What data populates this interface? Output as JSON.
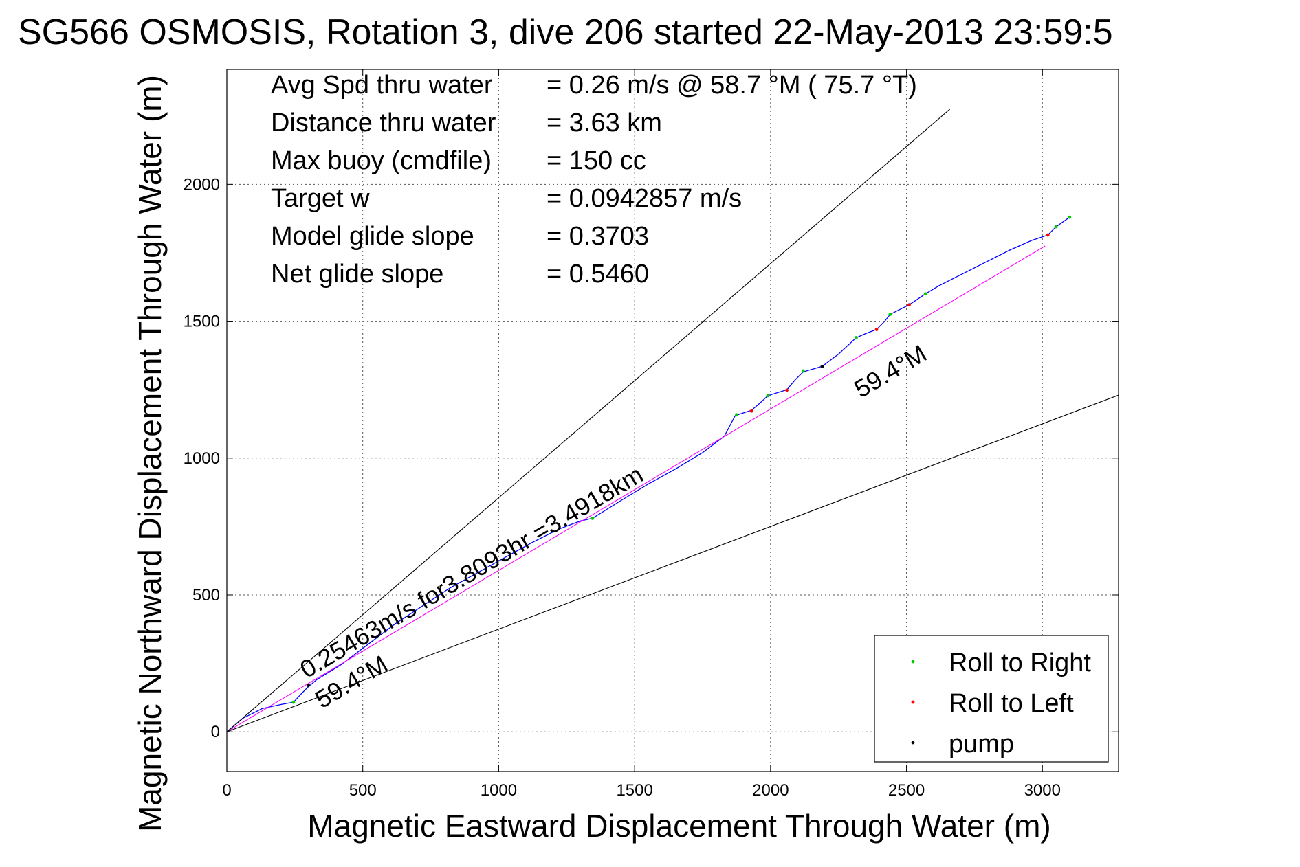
{
  "title": "SG566 OSMOSIS, Rotation 3, dive 206 started 22-May-2013 23:59:5",
  "chart_data": {
    "type": "line",
    "xlabel": "Magnetic Eastward Displacement Through Water (m)",
    "ylabel": "Magnetic Northward Displacement Through Water (m)",
    "xlim": [
      0,
      3280
    ],
    "ylim": [
      -145,
      2420
    ],
    "xticks": [
      0,
      500,
      1000,
      1500,
      2000,
      2500,
      3000
    ],
    "yticks": [
      0,
      500,
      1000,
      1500,
      2000
    ],
    "grid": true,
    "stats": [
      {
        "label": "Avg Spd thru water",
        "value": "=  0.26 m/s @  58.7 °M ( 75.7 °T)"
      },
      {
        "label": "Distance thru water",
        "value": "=  3.63 km"
      },
      {
        "label": "Max buoy (cmdfile)",
        "value": "= 150 cc"
      },
      {
        "label": "Target w",
        "value": "= 0.0942857 m/s"
      },
      {
        "label": "Model glide slope",
        "value": "= 0.3703"
      },
      {
        "label": "Net glide slope",
        "value": "= 0.5460"
      }
    ],
    "annotations": {
      "drift": "0.25463m/s for3.8093hr =3.4918km",
      "heading_upper": "59.4°M",
      "heading_lower": "59.4°M"
    },
    "series": [
      {
        "name": "track",
        "color": "#0000ff",
        "x": [
          0,
          60,
          130,
          200,
          245,
          275,
          300,
          330,
          420,
          520,
          620,
          720,
          820,
          920,
          1020,
          1120,
          1220,
          1300,
          1345,
          1450,
          1550,
          1650,
          1750,
          1830,
          1870,
          1900,
          1930,
          1960,
          1990,
          2060,
          2090,
          2120,
          2190,
          2250,
          2315,
          2350,
          2390,
          2420,
          2440,
          2470,
          2510,
          2540,
          2570,
          2620,
          2700,
          2800,
          2880,
          2960,
          3020,
          3050,
          3100
        ],
        "y": [
          0,
          50,
          85,
          100,
          108,
          140,
          165,
          190,
          245,
          320,
          395,
          460,
          525,
          580,
          635,
          690,
          740,
          770,
          780,
          845,
          905,
          960,
          1020,
          1080,
          1155,
          1165,
          1175,
          1200,
          1228,
          1250,
          1285,
          1315,
          1335,
          1380,
          1440,
          1455,
          1470,
          1500,
          1525,
          1540,
          1560,
          1580,
          1600,
          1630,
          1670,
          1720,
          1760,
          1795,
          1815,
          1845,
          1880
        ]
      },
      {
        "name": "glide path",
        "color": "#ff00ff",
        "x": [
          0,
          3010
        ],
        "y": [
          0,
          1775
        ]
      },
      {
        "name": "heading reference upper",
        "color": "#000000",
        "x": [
          0,
          2660
        ],
        "y": [
          0,
          2275
        ]
      },
      {
        "name": "heading reference lower",
        "color": "#000000",
        "x": [
          0,
          3280
        ],
        "y": [
          0,
          1230
        ]
      }
    ],
    "markers": {
      "roll_right": [
        [
          245,
          108
        ],
        [
          1345,
          780
        ],
        [
          1875,
          1158
        ],
        [
          1990,
          1228
        ],
        [
          2120,
          1318
        ],
        [
          2315,
          1440
        ],
        [
          2440,
          1525
        ],
        [
          2570,
          1600
        ],
        [
          3050,
          1845
        ],
        [
          3100,
          1880
        ]
      ],
      "roll_left": [
        [
          1930,
          1172
        ],
        [
          2060,
          1248
        ],
        [
          2390,
          1470
        ],
        [
          2510,
          1560
        ],
        [
          3020,
          1815
        ]
      ],
      "pump": [
        [
          300,
          170
        ],
        [
          2190,
          1335
        ]
      ]
    },
    "legend": {
      "position": "bottom-right",
      "entries": [
        {
          "label": "Roll to Right",
          "color": "#00cc00"
        },
        {
          "label": "Roll to Left",
          "color": "#ff0000"
        },
        {
          "label": "pump",
          "color": "#000000"
        }
      ]
    }
  }
}
